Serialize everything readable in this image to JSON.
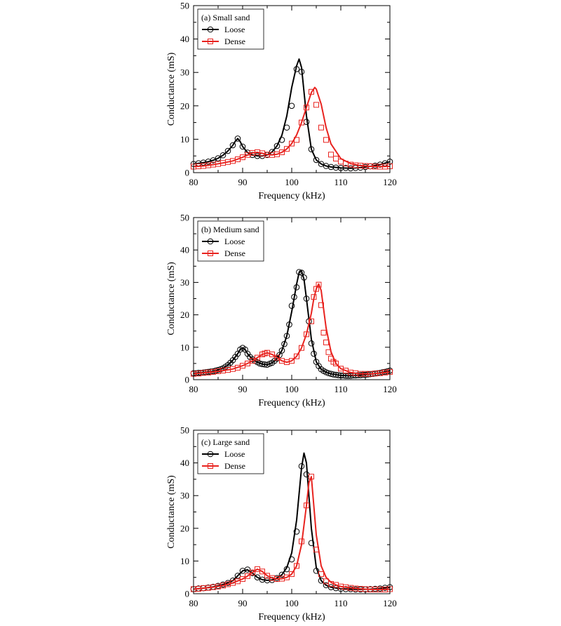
{
  "chart_data": [
    {
      "type": "line",
      "panel_label": "(a) Small sand",
      "xlabel": "Frequency (kHz)",
      "ylabel": "Conductance (mS)",
      "xlim": [
        80,
        120
      ],
      "ylim": [
        0,
        50
      ],
      "xticks": [
        80,
        90,
        100,
        110,
        120
      ],
      "yticks": [
        0,
        10,
        20,
        30,
        40,
        50
      ],
      "legend_position": "top-left",
      "series": [
        {
          "name": "Loose",
          "color": "#000000",
          "marker": "circle",
          "x": [
            80,
            81,
            82,
            83,
            84,
            85,
            86,
            87,
            88,
            88.5,
            89,
            89.5,
            90,
            91,
            92,
            93,
            94,
            95,
            96,
            97,
            98,
            99,
            100,
            101,
            101.5,
            102,
            103,
            104,
            105,
            106,
            107,
            108,
            110,
            112,
            114,
            116,
            118,
            120
          ],
          "y": [
            2.6,
            2.8,
            3.0,
            3.3,
            3.7,
            4.3,
            5.2,
            6.5,
            8.2,
            9.4,
            10.2,
            9.3,
            7.8,
            6.0,
            5.3,
            5.0,
            5.0,
            5.3,
            6.2,
            8.0,
            11.2,
            17.0,
            25.5,
            32.0,
            34.0,
            31.5,
            17.0,
            7.0,
            3.8,
            2.6,
            2.0,
            1.7,
            1.4,
            1.3,
            1.5,
            1.9,
            2.4,
            3.3
          ],
          "marker_x": [
            80,
            81,
            82,
            83,
            84,
            85,
            86,
            87,
            88,
            89,
            90,
            91,
            92,
            93,
            94,
            95,
            96,
            97,
            98,
            99,
            100,
            101,
            102,
            103,
            104,
            105,
            106,
            107,
            108,
            109,
            110,
            111,
            112,
            113,
            114,
            115,
            116,
            117,
            118,
            119,
            120
          ],
          "marker_y": [
            2.6,
            2.8,
            3.0,
            3.3,
            3.7,
            4.3,
            5.2,
            6.5,
            8.2,
            10.2,
            7.8,
            6.0,
            5.3,
            5.0,
            5.0,
            5.3,
            6.2,
            8.0,
            9.8,
            13.5,
            20.0,
            31.0,
            30.2,
            15.2,
            7.0,
            3.8,
            2.6,
            2.0,
            1.7,
            1.5,
            1.4,
            1.4,
            1.3,
            1.4,
            1.5,
            1.7,
            1.9,
            2.1,
            2.4,
            2.8,
            3.3
          ]
        },
        {
          "name": "Dense",
          "color": "#e8231f",
          "marker": "square",
          "x": [
            80,
            82,
            84,
            86,
            88,
            90,
            91,
            92,
            93,
            94,
            95,
            96,
            97,
            98,
            99,
            100,
            101,
            102,
            103,
            104,
            104.7,
            105,
            106,
            107,
            108,
            110,
            112,
            114,
            116,
            118,
            120
          ],
          "y": [
            1.8,
            2.0,
            2.4,
            2.9,
            3.5,
            4.6,
            5.3,
            5.9,
            6.1,
            5.8,
            5.4,
            5.3,
            5.5,
            6.1,
            7.1,
            8.7,
            11.3,
            15.0,
            19.5,
            24.0,
            25.5,
            25.0,
            20.5,
            13.5,
            8.6,
            4.2,
            2.7,
            2.1,
            1.9,
            1.8,
            1.9
          ],
          "marker_x": [
            80,
            81,
            82,
            83,
            84,
            85,
            86,
            87,
            88,
            89,
            90,
            91,
            92,
            93,
            94,
            95,
            96,
            97,
            98,
            99,
            100,
            101,
            102,
            103,
            104,
            105,
            106,
            107,
            108,
            109,
            110,
            111,
            112,
            113,
            114,
            115,
            116,
            117,
            118,
            119,
            120
          ],
          "marker_y": [
            1.8,
            1.9,
            2.0,
            2.2,
            2.4,
            2.6,
            2.9,
            3.2,
            3.5,
            4.0,
            4.6,
            5.3,
            5.9,
            6.1,
            5.8,
            5.4,
            5.3,
            5.5,
            6.1,
            7.1,
            8.7,
            9.8,
            15.0,
            19.5,
            24.2,
            20.3,
            13.5,
            9.8,
            5.4,
            4.2,
            3.3,
            2.7,
            2.4,
            2.2,
            2.1,
            2.0,
            1.9,
            1.8,
            1.8,
            1.8,
            1.9
          ]
        }
      ]
    },
    {
      "type": "line",
      "panel_label": "(b) Medium sand",
      "xlabel": "Frequency (kHz)",
      "ylabel": "Conductance (mS)",
      "xlim": [
        80,
        120
      ],
      "ylim": [
        0,
        50
      ],
      "xticks": [
        80,
        90,
        100,
        110,
        120
      ],
      "yticks": [
        0,
        10,
        20,
        30,
        40,
        50
      ],
      "legend_position": "top-left",
      "series": [
        {
          "name": "Loose",
          "color": "#000000",
          "marker": "circle",
          "x": [
            80,
            82,
            84,
            86,
            87,
            88,
            89,
            89.5,
            90,
            90.5,
            91,
            92,
            93,
            94,
            95,
            96,
            97,
            98,
            99,
            100,
            101,
            101.5,
            102,
            102.5,
            103,
            104,
            105,
            106,
            107,
            108,
            110,
            112,
            114,
            116,
            118,
            120
          ],
          "y": [
            2.0,
            2.2,
            2.6,
            3.5,
            4.5,
            6.0,
            8.0,
            9.3,
            9.8,
            9.3,
            8.0,
            6.3,
            5.4,
            4.8,
            4.6,
            5.2,
            6.5,
            9.0,
            13.5,
            21.0,
            29.5,
            33.0,
            33.5,
            31.0,
            25.0,
            12.5,
            5.5,
            3.2,
            2.3,
            1.8,
            1.3,
            1.2,
            1.4,
            1.7,
            2.1,
            2.8
          ],
          "marker_x": [
            80,
            80.5,
            81,
            81.5,
            82,
            82.5,
            83,
            83.5,
            84,
            84.5,
            85,
            85.5,
            86,
            86.5,
            87,
            87.5,
            88,
            88.5,
            89,
            89.5,
            90,
            90.5,
            91,
            91.5,
            92,
            92.5,
            93,
            93.5,
            94,
            94.5,
            95,
            95.5,
            96,
            96.5,
            97,
            97.5,
            98,
            98.5,
            99,
            99.5,
            100,
            100.5,
            101,
            101.5,
            102,
            102.5,
            103,
            103.5,
            104,
            104.5,
            105,
            105.5,
            106,
            106.5,
            107,
            107.5,
            108,
            108.5,
            109,
            109.5,
            110,
            110.5,
            111,
            111.5,
            112,
            112.5,
            113,
            113.5,
            114,
            114.5,
            115,
            115.5,
            116,
            116.5,
            117,
            117.5,
            118,
            118.5,
            119,
            119.5,
            120
          ],
          "marker_y": [
            2.0,
            2.0,
            2.1,
            2.1,
            2.2,
            2.3,
            2.4,
            2.5,
            2.6,
            2.8,
            3.0,
            3.2,
            3.5,
            4.0,
            4.5,
            5.2,
            6.0,
            7.0,
            8.0,
            9.3,
            9.8,
            9.3,
            8.0,
            7.0,
            6.3,
            5.8,
            5.4,
            5.0,
            4.8,
            4.7,
            4.6,
            4.9,
            5.2,
            5.8,
            6.5,
            7.6,
            9.0,
            11.0,
            13.5,
            17.0,
            22.8,
            25.5,
            28.5,
            33.2,
            33.0,
            31.5,
            25.0,
            18.0,
            11.2,
            8.0,
            5.5,
            4.2,
            3.2,
            2.7,
            2.3,
            2.0,
            1.8,
            1.6,
            1.5,
            1.4,
            1.3,
            1.3,
            1.2,
            1.2,
            1.2,
            1.3,
            1.3,
            1.4,
            1.4,
            1.5,
            1.5,
            1.6,
            1.7,
            1.8,
            1.9,
            2.0,
            2.1,
            2.3,
            2.4,
            2.6,
            2.8
          ]
        },
        {
          "name": "Dense",
          "color": "#e8231f",
          "marker": "square",
          "x": [
            80,
            82,
            84,
            86,
            88,
            90,
            91,
            92,
            93,
            94,
            95,
            96,
            97,
            98,
            99,
            100,
            101,
            102,
            103,
            104,
            104.5,
            105,
            105.5,
            106,
            107,
            108,
            109,
            110,
            112,
            114,
            116,
            118,
            120
          ],
          "y": [
            1.8,
            2.1,
            2.4,
            2.8,
            3.3,
            4.3,
            5.0,
            5.8,
            6.8,
            7.8,
            8.3,
            7.8,
            6.8,
            5.8,
            5.4,
            5.8,
            7.2,
            9.8,
            14.0,
            20.5,
            25.0,
            28.0,
            29.5,
            27.5,
            16.0,
            8.6,
            5.0,
            3.4,
            2.2,
            1.8,
            1.8,
            2.0,
            2.4
          ],
          "marker_x": [
            80,
            81,
            82,
            83,
            84,
            85,
            86,
            87,
            88,
            89,
            90,
            91,
            92,
            93,
            94,
            94.5,
            95,
            96,
            97,
            98,
            99,
            100,
            101,
            102,
            103,
            104,
            104.5,
            105,
            105.5,
            106,
            106.5,
            107,
            107.5,
            108,
            108.5,
            109,
            110,
            111,
            112,
            113,
            114,
            115,
            116,
            117,
            118,
            119,
            120
          ],
          "marker_y": [
            1.8,
            1.9,
            2.1,
            2.2,
            2.4,
            2.6,
            2.8,
            3.0,
            3.3,
            3.7,
            4.3,
            5.0,
            5.8,
            6.8,
            7.8,
            8.1,
            8.3,
            7.8,
            6.8,
            5.8,
            5.4,
            5.8,
            7.2,
            9.8,
            14.0,
            18.0,
            25.5,
            28.0,
            29.3,
            23.0,
            14.5,
            11.5,
            8.5,
            6.5,
            5.5,
            5.0,
            3.4,
            2.8,
            2.2,
            2.0,
            1.8,
            1.8,
            1.8,
            1.9,
            2.0,
            2.2,
            2.4
          ]
        }
      ]
    },
    {
      "type": "line",
      "panel_label": "(c) Large sand",
      "xlabel": "Frequency (kHz)",
      "ylabel": "Conductance (mS)",
      "xlim": [
        80,
        120
      ],
      "ylim": [
        0,
        50
      ],
      "xticks": [
        80,
        90,
        100,
        110,
        120
      ],
      "yticks": [
        0,
        10,
        20,
        30,
        40,
        50
      ],
      "legend_position": "top-left",
      "series": [
        {
          "name": "Loose",
          "color": "#000000",
          "marker": "circle",
          "x": [
            80,
            82,
            84,
            86,
            88,
            89,
            90,
            91,
            92,
            93,
            94,
            95,
            96,
            97,
            98,
            99,
            100,
            101,
            102,
            102.5,
            103,
            104,
            105,
            106,
            107,
            108,
            110,
            112,
            114,
            116,
            118,
            120
          ],
          "y": [
            1.4,
            1.7,
            2.1,
            2.8,
            4.0,
            5.5,
            7.0,
            7.3,
            6.3,
            5.0,
            4.3,
            4.1,
            4.2,
            4.8,
            5.8,
            8.0,
            12.5,
            22.5,
            38.5,
            43.0,
            40.0,
            20.0,
            8.0,
            4.0,
            2.6,
            2.0,
            1.5,
            1.4,
            1.3,
            1.4,
            1.6,
            2.0
          ],
          "marker_x": [
            80,
            81,
            82,
            83,
            84,
            85,
            86,
            87,
            88,
            89,
            90,
            91,
            92,
            93,
            94,
            95,
            96,
            97,
            98,
            99,
            100,
            101,
            102,
            103,
            104,
            105,
            106,
            107,
            108,
            109,
            110,
            111,
            112,
            113,
            114,
            115,
            116,
            117,
            118,
            119,
            120
          ],
          "marker_y": [
            1.4,
            1.6,
            1.7,
            1.9,
            2.1,
            2.4,
            2.8,
            3.3,
            4.0,
            5.5,
            7.0,
            7.4,
            6.3,
            5.0,
            4.3,
            4.1,
            4.2,
            4.8,
            5.8,
            7.5,
            10.5,
            19.0,
            39.0,
            36.5,
            15.5,
            7.0,
            4.0,
            2.6,
            2.0,
            1.7,
            1.5,
            1.4,
            1.4,
            1.3,
            1.3,
            1.3,
            1.4,
            1.5,
            1.6,
            1.8,
            2.0
          ]
        },
        {
          "name": "Dense",
          "color": "#e8231f",
          "marker": "square",
          "x": [
            80,
            82,
            84,
            86,
            88,
            90,
            91,
            92,
            93,
            94,
            95,
            96,
            97,
            98,
            99,
            100,
            101,
            102,
            103,
            103.5,
            104,
            105,
            106,
            107,
            108,
            109,
            110,
            112,
            114,
            116,
            118,
            120
          ],
          "y": [
            1.4,
            1.7,
            2.0,
            2.5,
            3.3,
            4.5,
            5.4,
            6.5,
            7.5,
            6.8,
            5.5,
            4.8,
            4.5,
            4.6,
            5.0,
            6.0,
            8.5,
            15.0,
            27.0,
            34.0,
            35.8,
            18.0,
            8.5,
            5.0,
            3.5,
            2.7,
            2.2,
            1.8,
            1.5,
            1.3,
            1.3,
            1.4
          ],
          "marker_x": [
            80,
            81,
            82,
            83,
            84,
            85,
            86,
            87,
            88,
            89,
            90,
            91,
            92,
            93,
            94,
            95,
            96,
            97,
            98,
            99,
            100,
            101,
            102,
            103,
            104,
            105,
            106,
            107,
            108,
            109,
            110,
            111,
            112,
            113,
            114,
            115,
            116,
            117,
            118,
            119,
            120
          ],
          "marker_y": [
            1.4,
            1.5,
            1.7,
            1.8,
            2.0,
            2.2,
            2.5,
            2.9,
            3.3,
            3.8,
            4.5,
            5.4,
            6.5,
            7.5,
            6.8,
            5.5,
            4.8,
            4.5,
            4.6,
            5.0,
            6.0,
            8.5,
            16.0,
            27.0,
            35.8,
            13.5,
            6.0,
            3.8,
            3.0,
            2.7,
            2.2,
            2.0,
            1.8,
            1.6,
            1.5,
            1.4,
            1.3,
            1.3,
            1.3,
            1.3,
            1.4
          ]
        }
      ]
    }
  ]
}
